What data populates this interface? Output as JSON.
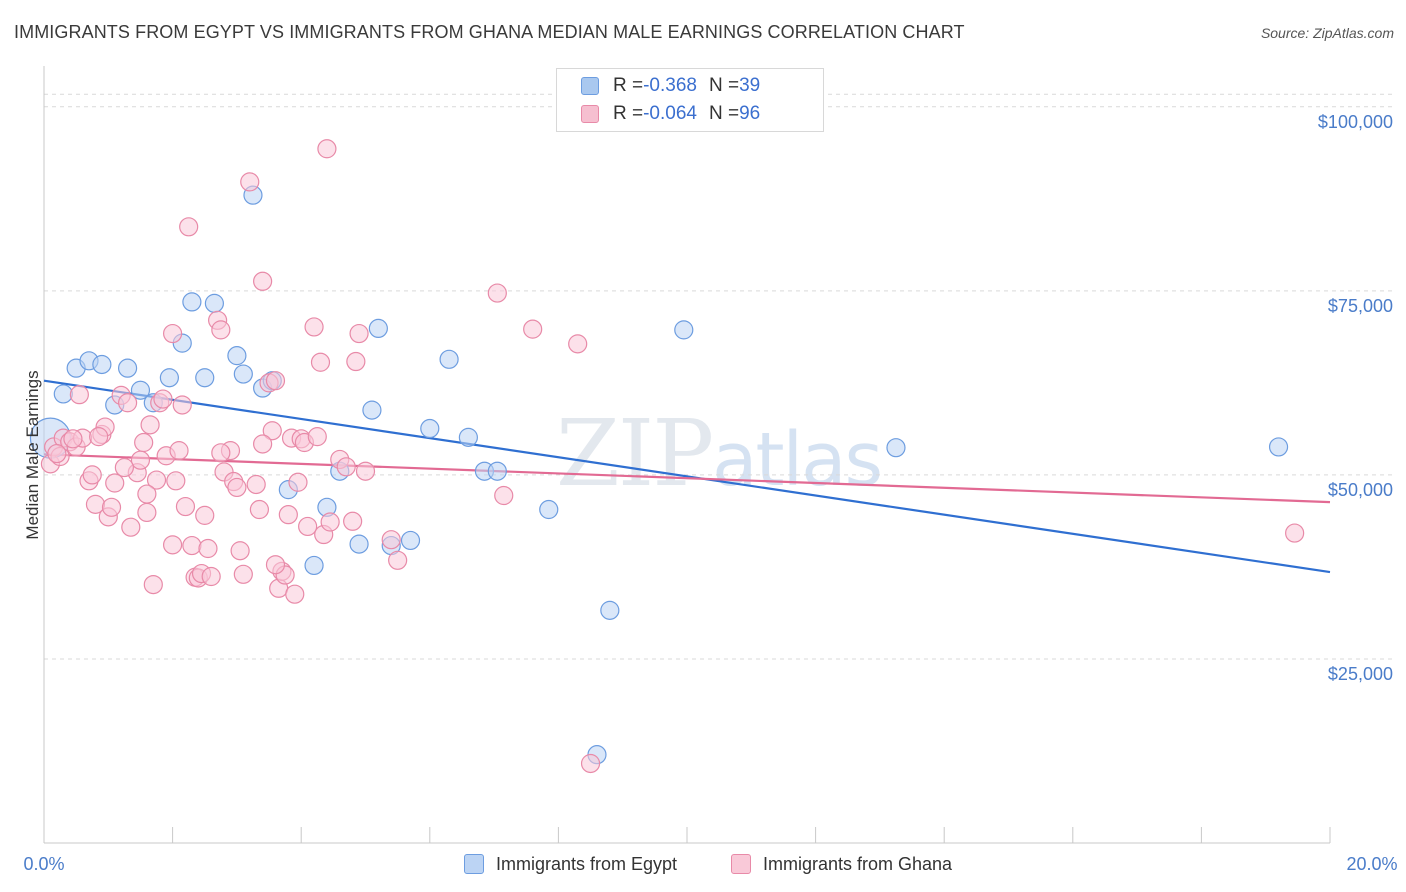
{
  "title": "IMMIGRANTS FROM EGYPT VS IMMIGRANTS FROM GHANA MEDIAN MALE EARNINGS CORRELATION CHART",
  "source": "Source: ZipAtlas.com",
  "watermark": {
    "a": "ZIP",
    "b": "atlas"
  },
  "legend": {
    "rows": [
      {
        "r_label": "R = ",
        "r_value": "-0.368",
        "n_label": "N = ",
        "n_value": "39",
        "color": "#a9c8ef",
        "border": "#6d9de0"
      },
      {
        "r_label": "R = ",
        "r_value": "-0.064",
        "n_label": "N = ",
        "n_value": "96",
        "color": "#f6bfd0",
        "border": "#e88aa8"
      }
    ]
  },
  "bottom_legend": [
    {
      "label": "Immigrants from Egypt",
      "color": "#bcd4f4",
      "border": "#6d9de0"
    },
    {
      "label": "Immigrants from Ghana",
      "color": "#f9c9d8",
      "border": "#e88aa8"
    }
  ],
  "chart_data": {
    "type": "scatter",
    "title": "IMMIGRANTS FROM EGYPT VS IMMIGRANTS FROM GHANA MEDIAN MALE EARNINGS CORRELATION CHART",
    "xlabel": "",
    "ylabel": "Median Male Earnings",
    "xlim": [
      0,
      20
    ],
    "ylim": [
      0,
      105000
    ],
    "x_ticks": [
      "0.0%",
      "20.0%"
    ],
    "y_ticks": [
      {
        "value": 100000,
        "label": "$100,000"
      },
      {
        "value": 75000,
        "label": "$75,000"
      },
      {
        "value": 50000,
        "label": "$50,000"
      },
      {
        "value": 25000,
        "label": "$25,000"
      }
    ],
    "grid": true,
    "series": [
      {
        "name": "Immigrants from Egypt",
        "color": "#6d9de0",
        "fill": "#bcd4f4",
        "trend": {
          "x0": 0,
          "y0": 62800,
          "x1": 20,
          "y1": 36800,
          "color": "#2f6fd1"
        },
        "points": [
          [
            0.1,
            55000,
            "large"
          ],
          [
            0.3,
            61000
          ],
          [
            0.5,
            64500
          ],
          [
            0.7,
            65500
          ],
          [
            0.9,
            65000
          ],
          [
            1.1,
            59500
          ],
          [
            1.3,
            64500
          ],
          [
            1.5,
            61500
          ],
          [
            1.7,
            59800
          ],
          [
            1.95,
            63200
          ],
          [
            2.15,
            67900
          ],
          [
            2.3,
            73500
          ],
          [
            2.5,
            63200
          ],
          [
            2.65,
            73300
          ],
          [
            3.0,
            66200
          ],
          [
            3.1,
            63700
          ],
          [
            3.25,
            88000
          ],
          [
            3.4,
            61800
          ],
          [
            3.55,
            62800
          ],
          [
            3.8,
            48000
          ],
          [
            4.2,
            37700
          ],
          [
            4.4,
            45600
          ],
          [
            4.6,
            50500
          ],
          [
            4.9,
            40600
          ],
          [
            5.1,
            58800
          ],
          [
            5.2,
            69900
          ],
          [
            5.4,
            40400
          ],
          [
            5.7,
            41100
          ],
          [
            6.0,
            56300
          ],
          [
            6.3,
            65700
          ],
          [
            6.6,
            55100
          ],
          [
            6.85,
            50500
          ],
          [
            7.05,
            50500
          ],
          [
            7.85,
            45300
          ],
          [
            8.8,
            31600
          ],
          [
            9.95,
            69700
          ],
          [
            8.6,
            12000
          ],
          [
            13.25,
            53700
          ],
          [
            19.2,
            53800
          ]
        ]
      },
      {
        "name": "Immigrants from Ghana",
        "color": "#e88aa8",
        "fill": "#f9c9d8",
        "trend": {
          "x0": 0,
          "y0": 52800,
          "x1": 20,
          "y1": 46300,
          "color": "#e26a93"
        },
        "points": [
          [
            0.1,
            51500
          ],
          [
            0.15,
            53800
          ],
          [
            0.25,
            52500
          ],
          [
            0.3,
            55000
          ],
          [
            0.4,
            54500
          ],
          [
            0.5,
            53800
          ],
          [
            0.55,
            60900
          ],
          [
            0.6,
            55000
          ],
          [
            0.7,
            49200
          ],
          [
            0.75,
            50000
          ],
          [
            0.8,
            46000
          ],
          [
            0.9,
            55500
          ],
          [
            0.95,
            56500
          ],
          [
            1.0,
            44300
          ],
          [
            1.05,
            45600
          ],
          [
            1.1,
            48900
          ],
          [
            1.2,
            60800
          ],
          [
            1.3,
            59800
          ],
          [
            1.35,
            42900
          ],
          [
            1.45,
            50300
          ],
          [
            1.5,
            52000
          ],
          [
            1.55,
            54400
          ],
          [
            1.6,
            44900
          ],
          [
            1.65,
            56800
          ],
          [
            1.7,
            35100
          ],
          [
            1.75,
            49300
          ],
          [
            1.8,
            59800
          ],
          [
            1.85,
            60300
          ],
          [
            1.9,
            52600
          ],
          [
            2.0,
            69200
          ],
          [
            2.05,
            49200
          ],
          [
            2.1,
            53300
          ],
          [
            2.15,
            59500
          ],
          [
            2.2,
            45700
          ],
          [
            2.25,
            83700
          ],
          [
            2.3,
            40400
          ],
          [
            2.35,
            36100
          ],
          [
            2.4,
            36000
          ],
          [
            2.45,
            36600
          ],
          [
            2.5,
            44500
          ],
          [
            2.55,
            40000
          ],
          [
            2.6,
            36200
          ],
          [
            2.7,
            71000
          ],
          [
            2.75,
            69700
          ],
          [
            2.8,
            50400
          ],
          [
            2.9,
            53300
          ],
          [
            2.95,
            49100
          ],
          [
            3.0,
            48300
          ],
          [
            3.05,
            39700
          ],
          [
            3.1,
            36500
          ],
          [
            3.2,
            89800
          ],
          [
            3.3,
            48700
          ],
          [
            3.35,
            45300
          ],
          [
            3.4,
            76300
          ],
          [
            3.5,
            62500
          ],
          [
            3.55,
            56000
          ],
          [
            3.6,
            62800
          ],
          [
            3.65,
            34600
          ],
          [
            3.7,
            36900
          ],
          [
            3.75,
            36400
          ],
          [
            3.8,
            44600
          ],
          [
            3.85,
            55000
          ],
          [
            3.9,
            33800
          ],
          [
            3.95,
            49000
          ],
          [
            4.0,
            54900
          ],
          [
            4.05,
            54400
          ],
          [
            4.1,
            43000
          ],
          [
            4.2,
            70100
          ],
          [
            4.3,
            65300
          ],
          [
            4.35,
            41900
          ],
          [
            4.4,
            94300
          ],
          [
            4.45,
            43600
          ],
          [
            4.6,
            52100
          ],
          [
            4.7,
            51100
          ],
          [
            4.8,
            43700
          ],
          [
            4.85,
            65400
          ],
          [
            4.9,
            69200
          ],
          [
            5.0,
            50500
          ],
          [
            5.4,
            41200
          ],
          [
            5.5,
            38400
          ],
          [
            7.05,
            74700
          ],
          [
            7.15,
            47200
          ],
          [
            7.6,
            69800
          ],
          [
            8.3,
            67800
          ],
          [
            8.5,
            10800
          ],
          [
            19.45,
            42100
          ],
          [
            0.2,
            52900
          ],
          [
            0.45,
            54900
          ],
          [
            0.85,
            55200
          ],
          [
            1.25,
            51000
          ],
          [
            1.6,
            47400
          ],
          [
            2.0,
            40500
          ],
          [
            2.75,
            53000
          ],
          [
            3.4,
            54200
          ],
          [
            3.6,
            37800
          ],
          [
            4.25,
            55200
          ]
        ]
      }
    ]
  }
}
